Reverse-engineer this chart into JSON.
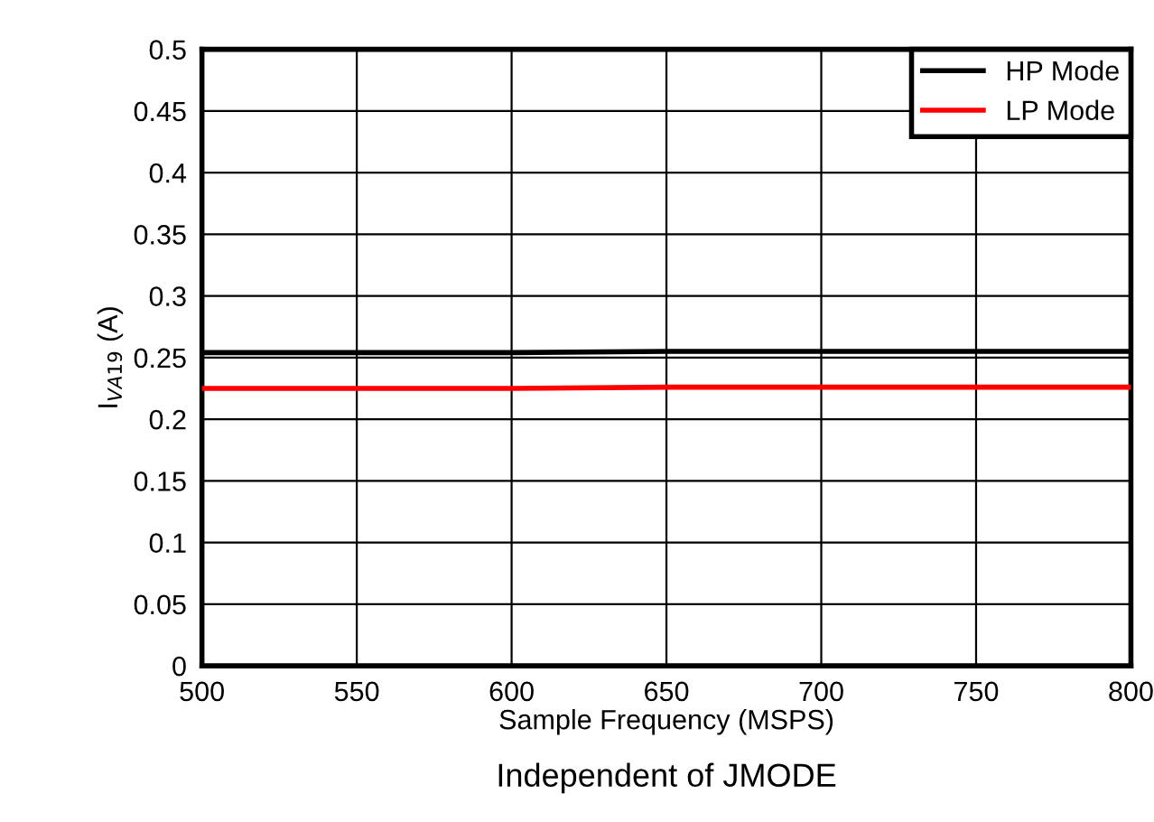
{
  "chart_data": {
    "type": "line",
    "xlabel": "Sample Frequency (MSPS)",
    "ylabel": "I$_{VA19}$ (A)",
    "annotations": [
      "Independent of JMODE"
    ],
    "x": [
      500,
      550,
      600,
      650,
      700,
      750,
      800
    ],
    "series": [
      {
        "name": "HP Mode",
        "color": "#000000",
        "values": [
          0.254,
          0.254,
          0.254,
          0.255,
          0.255,
          0.255,
          0.255
        ]
      },
      {
        "name": "LP Mode",
        "color": "#ff0000",
        "values": [
          0.225,
          0.225,
          0.225,
          0.226,
          0.226,
          0.226,
          0.226
        ]
      }
    ],
    "xlim": [
      500,
      800
    ],
    "xticks": [
      500,
      550,
      600,
      650,
      700,
      750,
      800
    ],
    "ylim": [
      0,
      0.5
    ],
    "yticks": [
      0,
      0.05,
      0.1,
      0.15,
      0.2,
      0.25,
      0.3,
      0.35,
      0.4,
      0.45,
      0.5
    ],
    "grid": true,
    "legend": "top right",
    "marker": "none",
    "line_style": "solid"
  }
}
